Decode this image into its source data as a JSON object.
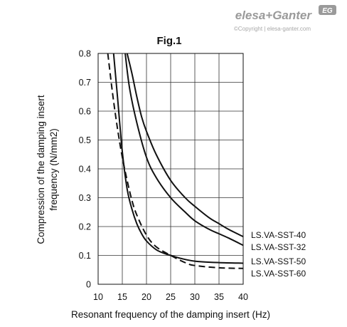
{
  "brand": {
    "name": "elesa+Ganter",
    "copyright": "©Copyright | elesa-ganter.com",
    "badge": "EG",
    "color": "#9a9a9a"
  },
  "chart_data": {
    "type": "line",
    "title": "Fig.1",
    "xlabel": "Resonant frequency of the damping insert (Hz)",
    "ylabel": "Compression of the damping insert frequency (N/mm2)",
    "ylabel_lines": [
      "Compression of the damping insert",
      "frequency (N/mm2)"
    ],
    "xlim": [
      10,
      40
    ],
    "ylim": [
      0,
      0.8
    ],
    "xticks": [
      10,
      15,
      20,
      25,
      30,
      35,
      40
    ],
    "yticks": [
      0,
      0.1,
      0.2,
      0.3,
      0.4,
      0.5,
      0.6,
      0.7,
      0.8
    ],
    "ytick_labels": [
      "0",
      "0.1",
      "0.2",
      "0.3",
      "0.4",
      "0.5",
      "0.6",
      "0.7",
      "0.8"
    ],
    "grid": true,
    "legend": "right, next to line ends",
    "series": [
      {
        "name": "LS.VA-SST-40",
        "style": "solid",
        "color": "#111111",
        "x": [
          16,
          17,
          18,
          19,
          20,
          22,
          25,
          28,
          30,
          33,
          35,
          37,
          40
        ],
        "y": [
          0.8,
          0.73,
          0.65,
          0.58,
          0.53,
          0.45,
          0.36,
          0.3,
          0.27,
          0.23,
          0.21,
          0.19,
          0.165
        ]
      },
      {
        "name": "LS.VA-SST-32",
        "style": "solid",
        "color": "#111111",
        "x": [
          15.6,
          16.5,
          18,
          20,
          22,
          25,
          28,
          30,
          33,
          35,
          37,
          40
        ],
        "y": [
          0.8,
          0.68,
          0.56,
          0.44,
          0.37,
          0.3,
          0.25,
          0.22,
          0.19,
          0.175,
          0.16,
          0.135
        ]
      },
      {
        "name": "LS.VA-SST-50",
        "style": "solid",
        "color": "#111111",
        "x": [
          13.2,
          14,
          15,
          16,
          17,
          18,
          19,
          20,
          22,
          24,
          25,
          27,
          30,
          35,
          40
        ],
        "y": [
          0.8,
          0.65,
          0.46,
          0.33,
          0.26,
          0.21,
          0.175,
          0.15,
          0.12,
          0.105,
          0.1,
          0.09,
          0.08,
          0.075,
          0.073
        ]
      },
      {
        "name": "LS.VA-SST-60",
        "style": "dashed",
        "color": "#111111",
        "x": [
          12,
          13,
          14,
          15,
          16,
          17,
          18,
          20,
          22,
          25,
          28,
          30,
          35,
          40
        ],
        "y": [
          0.8,
          0.66,
          0.54,
          0.44,
          0.36,
          0.29,
          0.24,
          0.17,
          0.13,
          0.1,
          0.075,
          0.065,
          0.057,
          0.055
        ]
      }
    ]
  }
}
